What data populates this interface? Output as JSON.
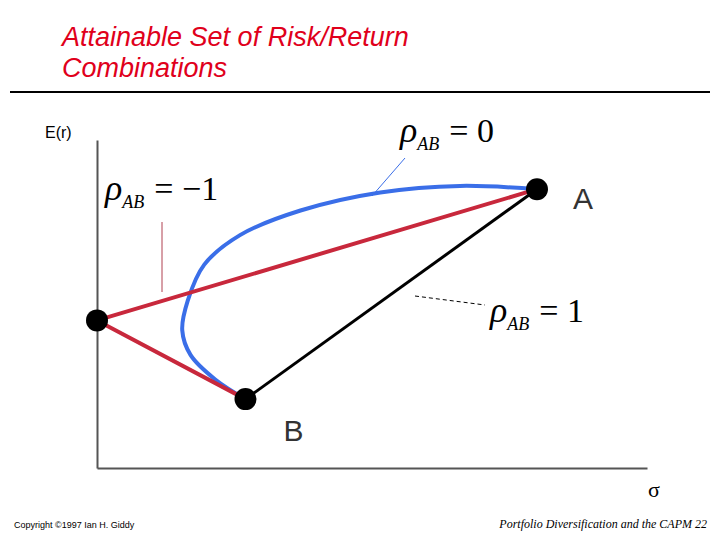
{
  "chart_data": {
    "type": "line",
    "title": "Attainable Set of Risk/Return Combinations",
    "x_label": "σ",
    "y_label": "E(r)",
    "xlim": [
      0,
      10
    ],
    "ylim": [
      0,
      10
    ],
    "xticks": [],
    "yticks": [],
    "tick_labels": false,
    "grid": false,
    "series": [
      {
        "label": {
          "main": "ρ",
          "sub": "AB",
          "rest": "= −1"
        },
        "color": "#c8283c",
        "x": [
          8,
          0,
          2.7
        ],
        "values": [
          8.5,
          4.5,
          2.1
        ]
      },
      {
        "label": {
          "main": "ρ",
          "sub": "AB",
          "rest": "= 0"
        },
        "color": "#3a6ee8",
        "x": [
          2.7,
          2.15,
          1.7,
          1.55,
          1.65,
          1.95,
          2.6,
          3.7,
          5.15,
          6.6,
          8
        ],
        "values": [
          2.1,
          2.7,
          3.45,
          4.2,
          5.1,
          6.2,
          7.1,
          7.85,
          8.4,
          8.6,
          8.5
        ]
      },
      {
        "label": {
          "main": "ρ",
          "sub": "AB",
          "rest": "= 1"
        },
        "color": "#000000",
        "x": [
          2.7,
          8
        ],
        "values": [
          2.1,
          8.5
        ]
      }
    ],
    "points": {
      "x": [
        8,
        2.7,
        0
      ],
      "y": [
        8.5,
        2.1,
        4.5
      ],
      "labels": [
        "A",
        "B",
        null
      ]
    },
    "copyright": "Copyright ©1997 Ian H. Giddy",
    "footer": "Portfolio Diversification and the CAPM 22"
  }
}
